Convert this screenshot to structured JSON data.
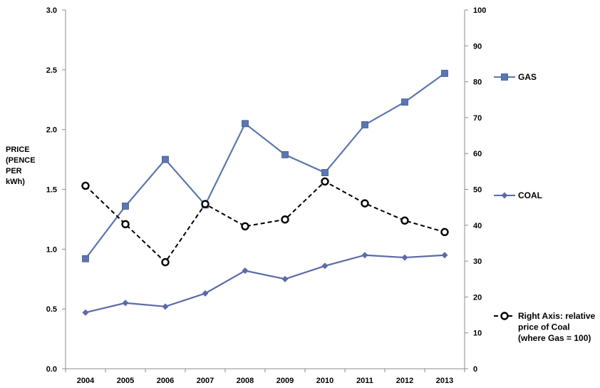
{
  "chart_data": {
    "type": "line",
    "categories": [
      "2004",
      "2005",
      "2006",
      "2007",
      "2008",
      "2009",
      "2010",
      "2011",
      "2012",
      "2013"
    ],
    "ylabel_lines": [
      "PRICE",
      "(PENCE",
      "PER",
      "kWh)"
    ],
    "left_axis": {
      "ylim": [
        0.0,
        3.0
      ],
      "ticks": [
        "0.0",
        "0.5",
        "1.0",
        "1.5",
        "2.0",
        "2.5",
        "3.0"
      ]
    },
    "right_axis": {
      "ylim": [
        0,
        100
      ],
      "ticks": [
        "0",
        "10",
        "20",
        "30",
        "40",
        "50",
        "60",
        "70",
        "80",
        "90",
        "100"
      ]
    },
    "grid": false,
    "legend_placement": "right",
    "series": [
      {
        "name": "GAS",
        "axis": "left",
        "style": "solid",
        "marker": "square",
        "color": "#5b76b0",
        "values": [
          0.92,
          1.36,
          1.75,
          1.37,
          2.05,
          1.79,
          1.64,
          2.04,
          2.23,
          2.47
        ]
      },
      {
        "name": "COAL",
        "axis": "left",
        "style": "solid",
        "marker": "diamond",
        "color": "#5b6aa8",
        "values": [
          0.47,
          0.55,
          0.52,
          0.63,
          0.82,
          0.75,
          0.86,
          0.95,
          0.93,
          0.95
        ]
      },
      {
        "name_lines": [
          "Right Axis: relative",
          "price of Coal",
          "(where Gas = 100)"
        ],
        "axis": "right",
        "style": "dashed",
        "marker": "open-circle",
        "color": "#000000",
        "values": [
          51,
          40.3,
          29.7,
          45.9,
          39.7,
          41.6,
          52.2,
          46.1,
          41.3,
          38.1
        ]
      }
    ]
  }
}
